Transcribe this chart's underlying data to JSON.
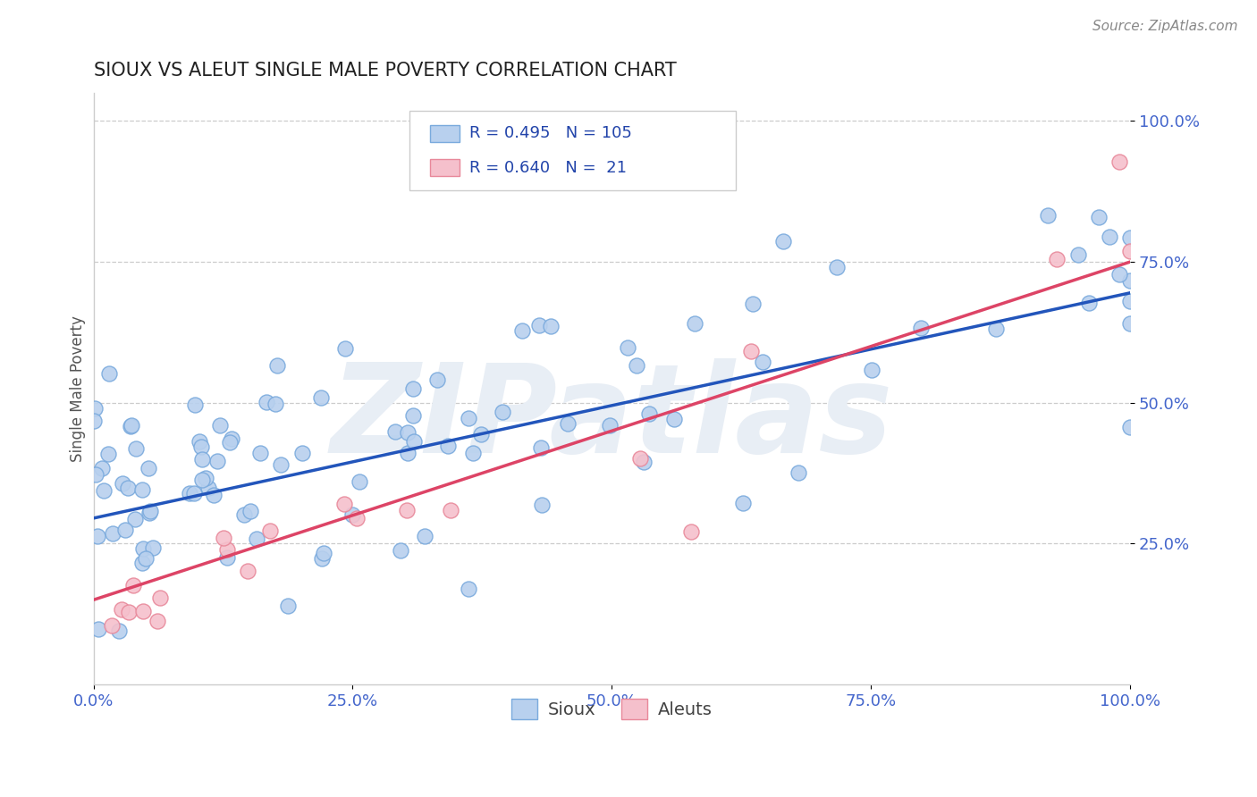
{
  "title": "SIOUX VS ALEUT SINGLE MALE POVERTY CORRELATION CHART",
  "source": "Source: ZipAtlas.com",
  "ylabel": "Single Male Poverty",
  "watermark": "ZIPatlas",
  "sioux_R": 0.495,
  "sioux_N": 105,
  "aleut_R": 0.64,
  "aleut_N": 21,
  "sioux_dot_fill": "#b8d0ee",
  "sioux_dot_edge": "#7aaadd",
  "aleut_dot_fill": "#f5c0cc",
  "aleut_dot_edge": "#e8889a",
  "sioux_line_color": "#2255bb",
  "aleut_line_color": "#dd4466",
  "bg_color": "#ffffff",
  "grid_color": "#cccccc",
  "title_color": "#222222",
  "tick_color": "#4466cc",
  "axis_color": "#cccccc",
  "source_color": "#888888",
  "legend_text_color": "#2244aa",
  "watermark_color": "#e8eef5",
  "sioux_intercept": 0.295,
  "sioux_slope": 0.4,
  "aleut_intercept": 0.15,
  "aleut_slope": 0.6,
  "xlim": [
    0.0,
    1.0
  ],
  "ylim": [
    0.0,
    1.05
  ],
  "ytick_values": [
    0.25,
    0.5,
    0.75,
    1.0
  ],
  "ytick_labels": [
    "25.0%",
    "50.0%",
    "75.0%",
    "100.0%"
  ],
  "xtick_values": [
    0.0,
    0.25,
    0.5,
    0.75,
    1.0
  ],
  "xtick_labels": [
    "0.0%",
    "25.0%",
    "50.0%",
    "75.0%",
    "100.0%"
  ]
}
